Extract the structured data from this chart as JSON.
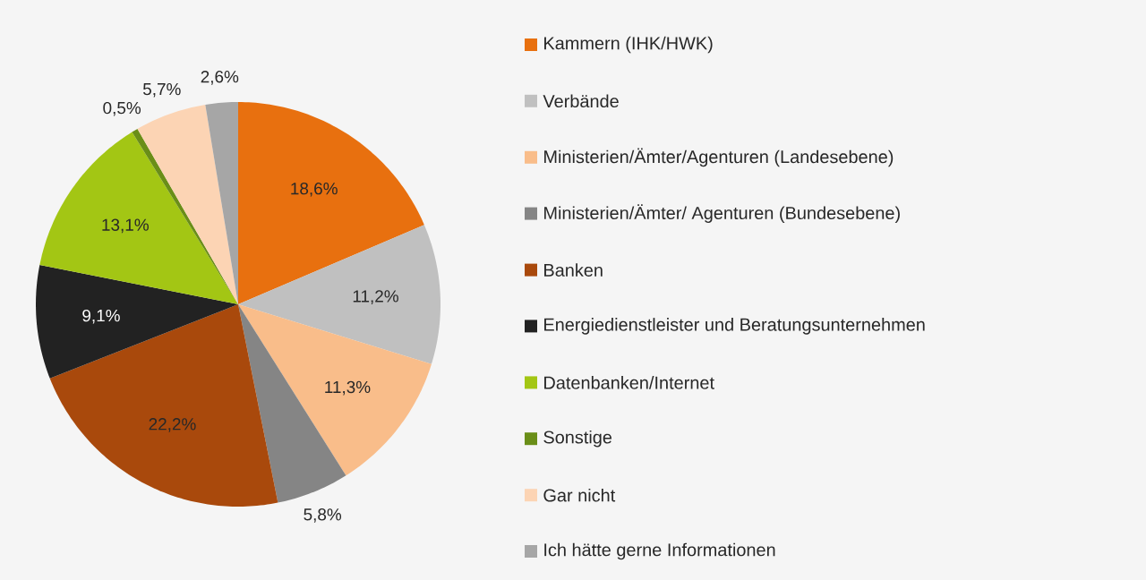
{
  "chart_data": {
    "type": "pie",
    "categories": [
      "Kammern (IHK/HWK)",
      "Verbände",
      "Ministerien/Ämter/Agenturen (Landesebene)",
      "Ministerien/Ämter/ Agenturen (Bundesebene)",
      "Banken",
      "Energiedienstleister und Beratungsunternehmen",
      "Datenbanken/Internet",
      "Sonstige",
      "Gar nicht",
      "Ich hätte gerne Informationen"
    ],
    "values": [
      18.6,
      11.2,
      11.3,
      5.8,
      22.2,
      9.1,
      13.1,
      0.5,
      5.7,
      2.6
    ],
    "value_labels": [
      "18,6%",
      "11,2%",
      "11,3%",
      "5,8%",
      "22,2%",
      "9,1%",
      "13,1%",
      "0,5%",
      "5,7%",
      "2,6%"
    ],
    "colors": [
      "#e8700f",
      "#c0c0c0",
      "#f9bd8a",
      "#858585",
      "#a9490c",
      "#222222",
      "#a3c614",
      "#6a8e18",
      "#fcd4b4",
      "#a6a6a6"
    ],
    "legend": "right"
  }
}
